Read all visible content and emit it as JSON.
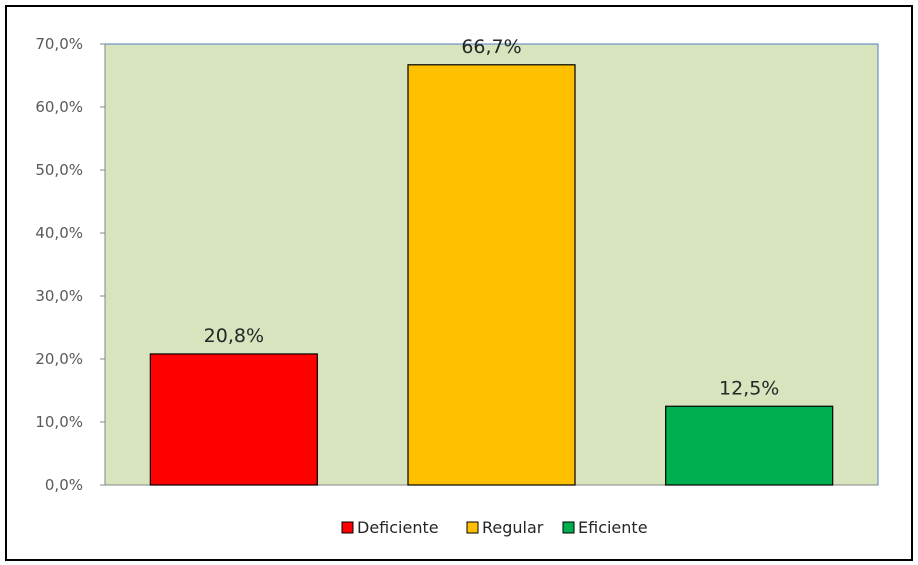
{
  "chart_data": {
    "type": "bar",
    "categories": [
      "Deficiente",
      "Regular",
      "Eficiente"
    ],
    "values": [
      20.8,
      66.7,
      12.5
    ],
    "value_labels": [
      "20,8%",
      "66,7%",
      "12,5%"
    ],
    "colors": [
      "#ff0000",
      "#ffc000",
      "#00b050"
    ],
    "ylim": [
      0,
      70
    ],
    "yticks": [
      0,
      10,
      20,
      30,
      40,
      50,
      60,
      70
    ],
    "ytick_labels": [
      "0,0%",
      "10,0%",
      "20,0%",
      "30,0%",
      "40,0%",
      "50,0%",
      "60,0%",
      "70,0%"
    ],
    "plot_background": "#d7e4bd",
    "legend_position": "bottom",
    "legend": [
      "Deficiente",
      "Regular",
      "Eficiente"
    ],
    "grid": false
  }
}
